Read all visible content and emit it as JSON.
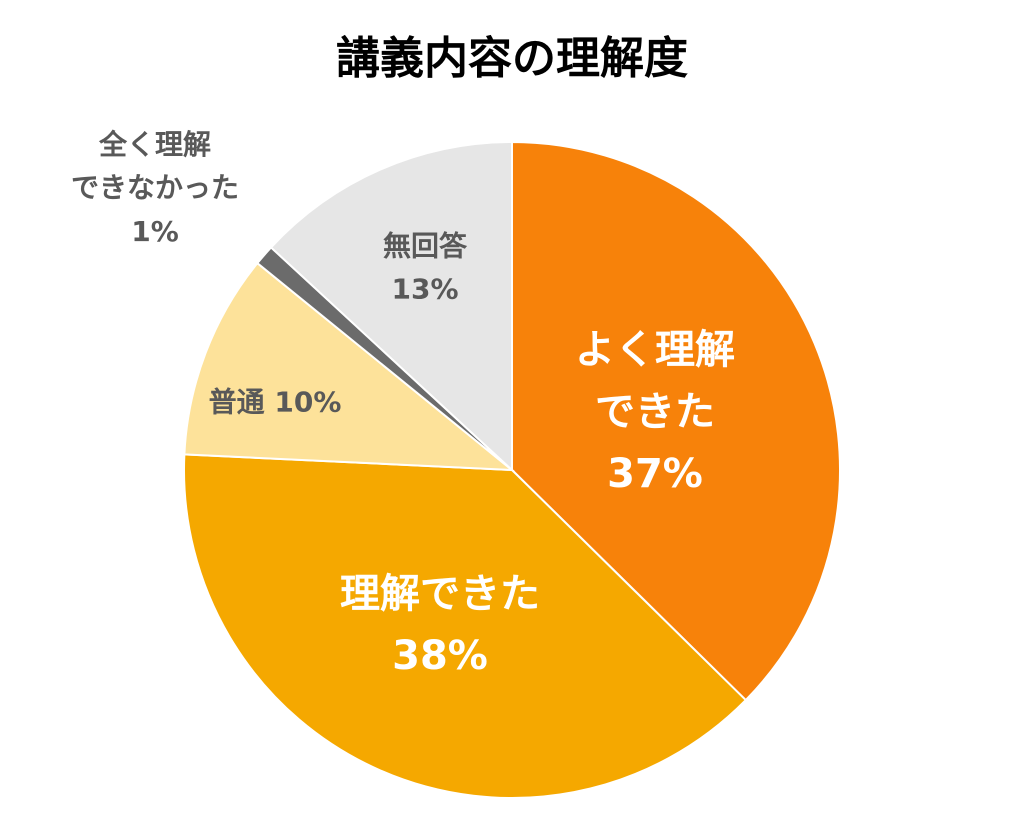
{
  "chart_data": {
    "type": "pie",
    "title": "講義内容の理解度",
    "categories": [
      "よく理解\nできた",
      "理解できた",
      "普通",
      "全く理解\nできなかった",
      "無回答"
    ],
    "values": [
      37,
      38,
      10,
      1,
      13
    ],
    "value_labels": [
      "37%",
      "38%",
      "10%",
      "1%",
      "13%"
    ],
    "colors": [
      "#f7820a",
      "#f5a800",
      "#fde29a",
      "#6b6b6b",
      "#e6e6e6"
    ]
  }
}
